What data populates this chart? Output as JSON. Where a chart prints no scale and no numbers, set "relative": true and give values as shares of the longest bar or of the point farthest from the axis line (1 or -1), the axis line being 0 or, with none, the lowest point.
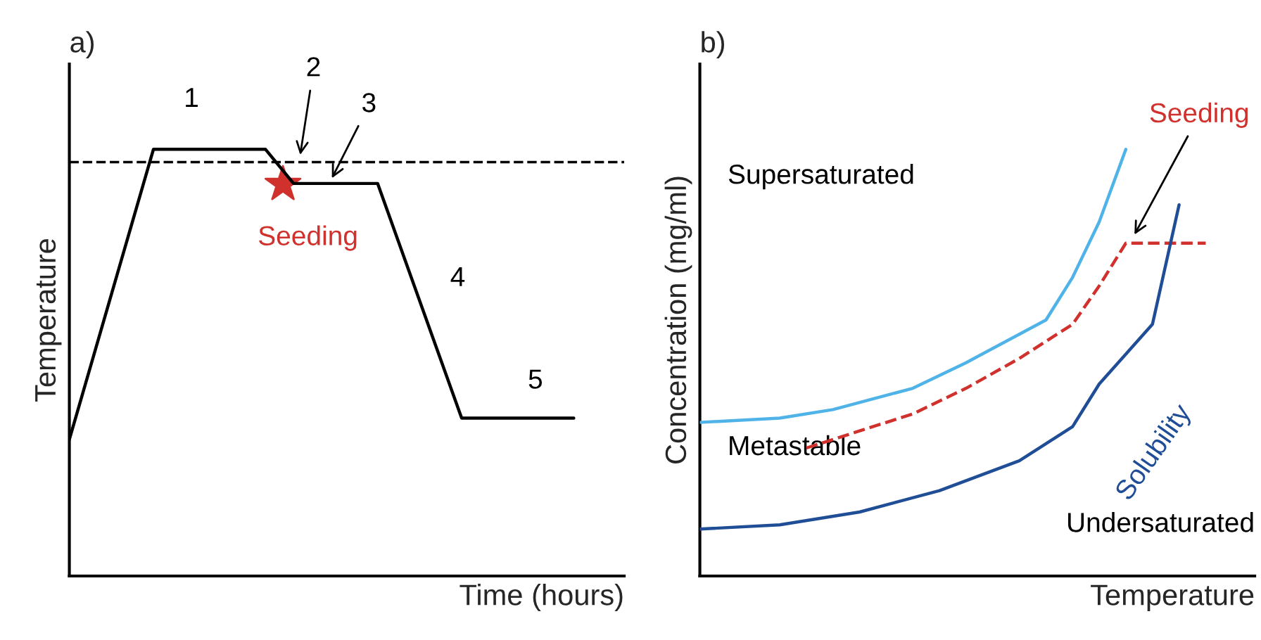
{
  "chart_data": [
    {
      "type": "line",
      "title": "a)",
      "xlabel": "Time (hours)",
      "ylabel": "Temperature",
      "relative": true,
      "tick_labels": false,
      "categories": [
        null,
        null,
        null,
        null,
        null,
        null,
        null,
        null,
        null,
        null,
        null,
        null,
        null,
        null,
        null,
        null,
        null,
        null,
        null,
        null
      ],
      "series": [
        {
          "color": "#000000",
          "values": [
            0.32,
            null,
            null,
            1,
            null,
            null,
            null,
            1,
            0.92,
            null,
            null,
            0.92,
            null,
            null,
            0.37,
            null,
            null,
            null,
            0.37,
            null
          ]
        }
      ],
      "ref_lines": [
        {
          "axis": "y",
          "value": 0.97,
          "line_style": "dashed",
          "color": "#000000"
        }
      ],
      "annotations": [
        "1",
        "2",
        "3",
        "4",
        "5",
        "Seeding"
      ]
    },
    {
      "type": "line",
      "title": "b)",
      "xlabel": "Temperature",
      "ylabel": "Concentration (mg/ml)",
      "relative": true,
      "tick_labels": false,
      "categories": [
        null,
        null,
        null,
        null,
        null,
        null,
        null,
        null,
        null,
        null,
        null,
        null,
        null,
        null,
        null,
        null,
        null,
        null,
        null,
        null,
        null
      ],
      "series": [
        {
          "color": "#4fb3e8",
          "values": [
            0.36,
            null,
            null,
            0.37,
            null,
            0.39,
            null,
            null,
            0.44,
            null,
            0.5,
            null,
            null,
            0.6,
            0.7,
            0.83,
            1,
            null,
            null,
            null,
            null
          ]
        },
        {
          "color": "#d0312d",
          "line_style": "dashed",
          "values": [
            null,
            null,
            null,
            null,
            0.3,
            null,
            0.34,
            null,
            0.38,
            null,
            0.44,
            null,
            0.51,
            null,
            0.59,
            0.68,
            0.78,
            null,
            null,
            0.78,
            null
          ]
        },
        {
          "name": "Solubility",
          "color": "#1f4e96",
          "values": [
            0.11,
            null,
            null,
            0.12,
            null,
            null,
            0.15,
            null,
            null,
            0.2,
            null,
            null,
            0.27,
            null,
            0.35,
            0.45,
            null,
            0.59,
            0.87,
            null,
            null
          ]
        }
      ],
      "annotations": [
        "Supersaturated",
        "Metastable",
        "Undersaturated",
        "Seeding"
      ]
    }
  ]
}
